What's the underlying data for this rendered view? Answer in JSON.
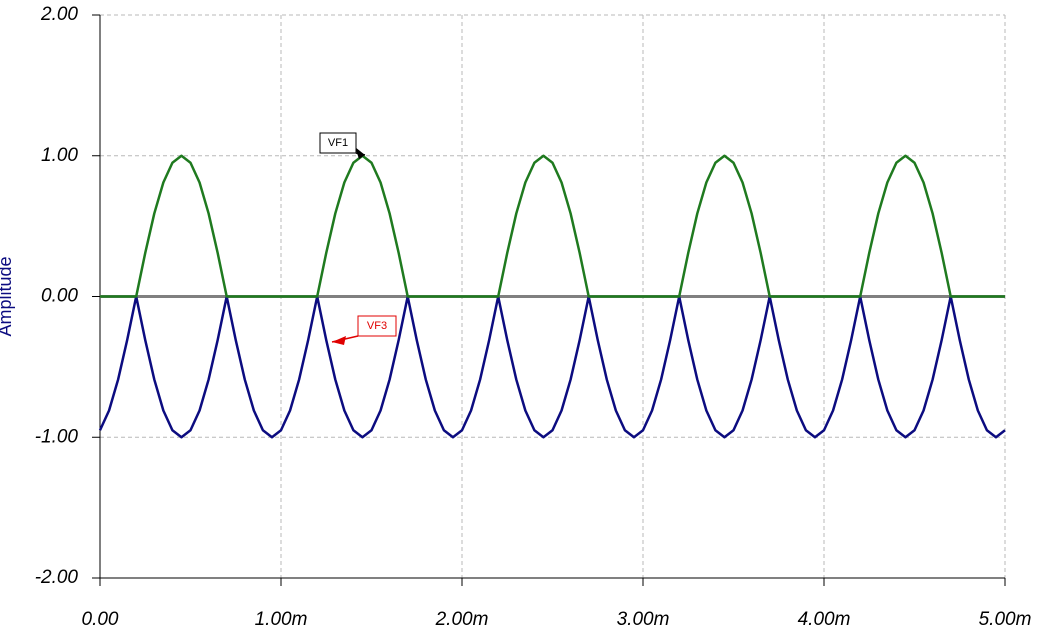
{
  "chart_data": {
    "type": "line",
    "y_label": "Amplitude",
    "x": [
      0,
      5e-05,
      0.0001,
      0.00015,
      0.0002,
      0.00025,
      0.0003,
      0.00035,
      0.0004,
      0.00045,
      0.0005,
      0.00055,
      0.0006,
      0.00065,
      0.0007,
      0.00075,
      0.0008,
      0.00085,
      0.0009,
      0.00095,
      0.001,
      0.00105,
      0.0011,
      0.00115,
      0.0012,
      0.00125,
      0.0013,
      0.00135,
      0.0014,
      0.00145,
      0.0015,
      0.00155,
      0.0016,
      0.00165,
      0.0017,
      0.00175,
      0.0018,
      0.00185,
      0.0019,
      0.00195,
      0.002,
      0.00205,
      0.0021,
      0.00215,
      0.0022,
      0.00225,
      0.0023,
      0.00235,
      0.0024,
      0.00245,
      0.0025,
      0.00255,
      0.0026,
      0.00265,
      0.0027,
      0.00275,
      0.0028,
      0.00285,
      0.0029,
      0.00295,
      0.003,
      0.00305,
      0.0031,
      0.00315,
      0.0032,
      0.00325,
      0.0033,
      0.00335,
      0.0034,
      0.00345,
      0.0035,
      0.00355,
      0.0036,
      0.00365,
      0.0037,
      0.00375,
      0.0038,
      0.00385,
      0.0039,
      0.00395,
      0.004,
      0.00405,
      0.0041,
      0.00415,
      0.0042,
      0.00425,
      0.0043,
      0.00435,
      0.0044,
      0.00445,
      0.0045,
      0.00455,
      0.0046,
      0.00465,
      0.0047,
      0.00475,
      0.0048,
      0.00485,
      0.0049,
      0.00495,
      0.005
    ],
    "series": [
      {
        "name": "VF1",
        "color": "#1f7a1f",
        "values": [
          0,
          0,
          0,
          0,
          0,
          0.31,
          0.59,
          0.81,
          0.95,
          1,
          0.95,
          0.81,
          0.59,
          0.31,
          0,
          0,
          0,
          0,
          0,
          0,
          0,
          0,
          0,
          0,
          0,
          0.31,
          0.59,
          0.81,
          0.95,
          1,
          0.95,
          0.81,
          0.59,
          0.31,
          0,
          0,
          0,
          0,
          0,
          0,
          0,
          0,
          0,
          0,
          0,
          0.31,
          0.59,
          0.81,
          0.95,
          1,
          0.95,
          0.81,
          0.59,
          0.31,
          0,
          0,
          0,
          0,
          0,
          0,
          0,
          0,
          0,
          0,
          0,
          0.31,
          0.59,
          0.81,
          0.95,
          1,
          0.95,
          0.81,
          0.59,
          0.31,
          0,
          0,
          0,
          0,
          0,
          0,
          0,
          0,
          0,
          0,
          0,
          0.31,
          0.59,
          0.81,
          0.95,
          1,
          0.95,
          0.81,
          0.59,
          0.31,
          0,
          0,
          0,
          0,
          0,
          0,
          0
        ]
      },
      {
        "name": "VF3",
        "color": "#0c0c80",
        "values": [
          -0.95,
          -0.81,
          -0.59,
          -0.31,
          0,
          -0.31,
          -0.59,
          -0.81,
          -0.95,
          -1,
          -0.95,
          -0.81,
          -0.59,
          -0.31,
          0,
          -0.31,
          -0.59,
          -0.81,
          -0.95,
          -1,
          -0.95,
          -0.81,
          -0.59,
          -0.31,
          0,
          -0.31,
          -0.59,
          -0.81,
          -0.95,
          -1,
          -0.95,
          -0.81,
          -0.59,
          -0.31,
          0,
          -0.31,
          -0.59,
          -0.81,
          -0.95,
          -1,
          -0.95,
          -0.81,
          -0.59,
          -0.31,
          0,
          -0.31,
          -0.59,
          -0.81,
          -0.95,
          -1,
          -0.95,
          -0.81,
          -0.59,
          -0.31,
          0,
          -0.31,
          -0.59,
          -0.81,
          -0.95,
          -1,
          -0.95,
          -0.81,
          -0.59,
          -0.31,
          0,
          -0.31,
          -0.59,
          -0.81,
          -0.95,
          -1,
          -0.95,
          -0.81,
          -0.59,
          -0.31,
          0,
          -0.31,
          -0.59,
          -0.81,
          -0.95,
          -1,
          -0.95,
          -0.81,
          -0.59,
          -0.31,
          0,
          -0.31,
          -0.59,
          -0.81,
          -0.95,
          -1,
          -0.95,
          -0.81,
          -0.59,
          -0.31,
          0,
          -0.31,
          -0.59,
          -0.81,
          -0.95,
          -1,
          -0.95
        ]
      }
    ],
    "xlim": [
      0,
      0.005
    ],
    "xticks": [
      {
        "value": 0,
        "label": "0.00"
      },
      {
        "value": 0.001,
        "label": "1.00m"
      },
      {
        "value": 0.002,
        "label": "2.00m"
      },
      {
        "value": 0.003,
        "label": "3.00m"
      },
      {
        "value": 0.004,
        "label": "4.00m"
      },
      {
        "value": 0.005,
        "label": "5.00m"
      }
    ],
    "ylim": [
      -2,
      2
    ],
    "yticks": [
      {
        "value": -2,
        "label": "-2.00"
      },
      {
        "value": -1,
        "label": "-1.00"
      },
      {
        "value": 0,
        "label": "0.00"
      },
      {
        "value": 1,
        "label": "1.00"
      },
      {
        "value": 2,
        "label": "2.00"
      }
    ],
    "grid": true
  }
}
